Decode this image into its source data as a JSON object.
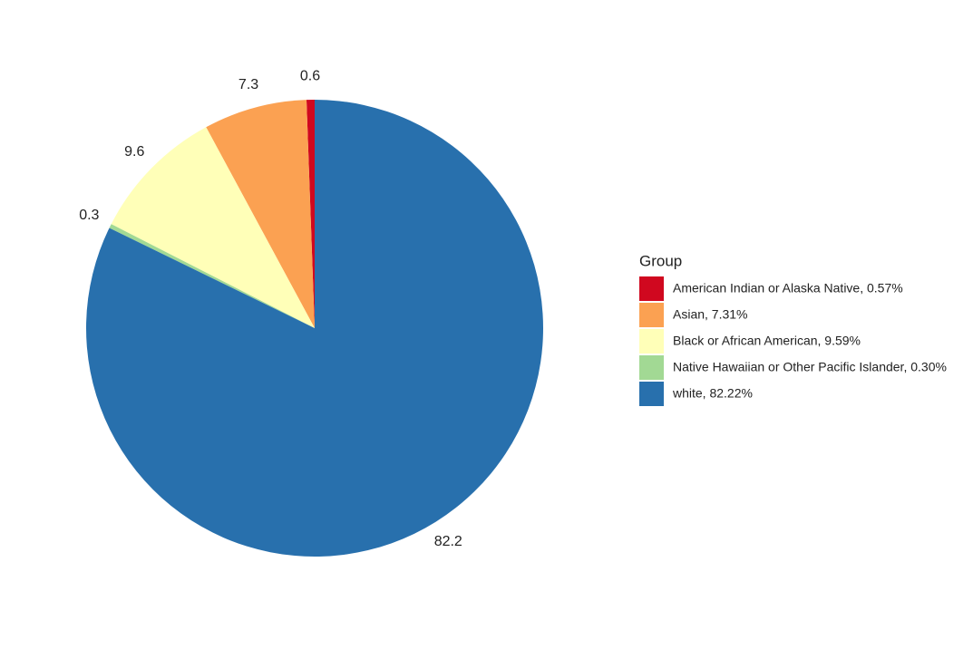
{
  "chart_data": {
    "type": "pie",
    "legend_title": "Group",
    "categories": [
      "American Indian or Alaska Native, 0.57%",
      "Asian, 7.31%",
      "Black or African American, 9.59%",
      "Native Hawaiian or Other Pacific Islander, 0.30%",
      "white, 82.22%"
    ],
    "values": [
      0.57,
      7.31,
      9.59,
      0.3,
      82.22
    ],
    "value_labels": [
      "0.6",
      "7.3",
      "9.6",
      "0.3",
      "82.2"
    ],
    "colors": [
      "#d0081f",
      "#fba152",
      "#ffffb8",
      "#a2d994",
      "#2870ad"
    ],
    "legend": "right"
  }
}
